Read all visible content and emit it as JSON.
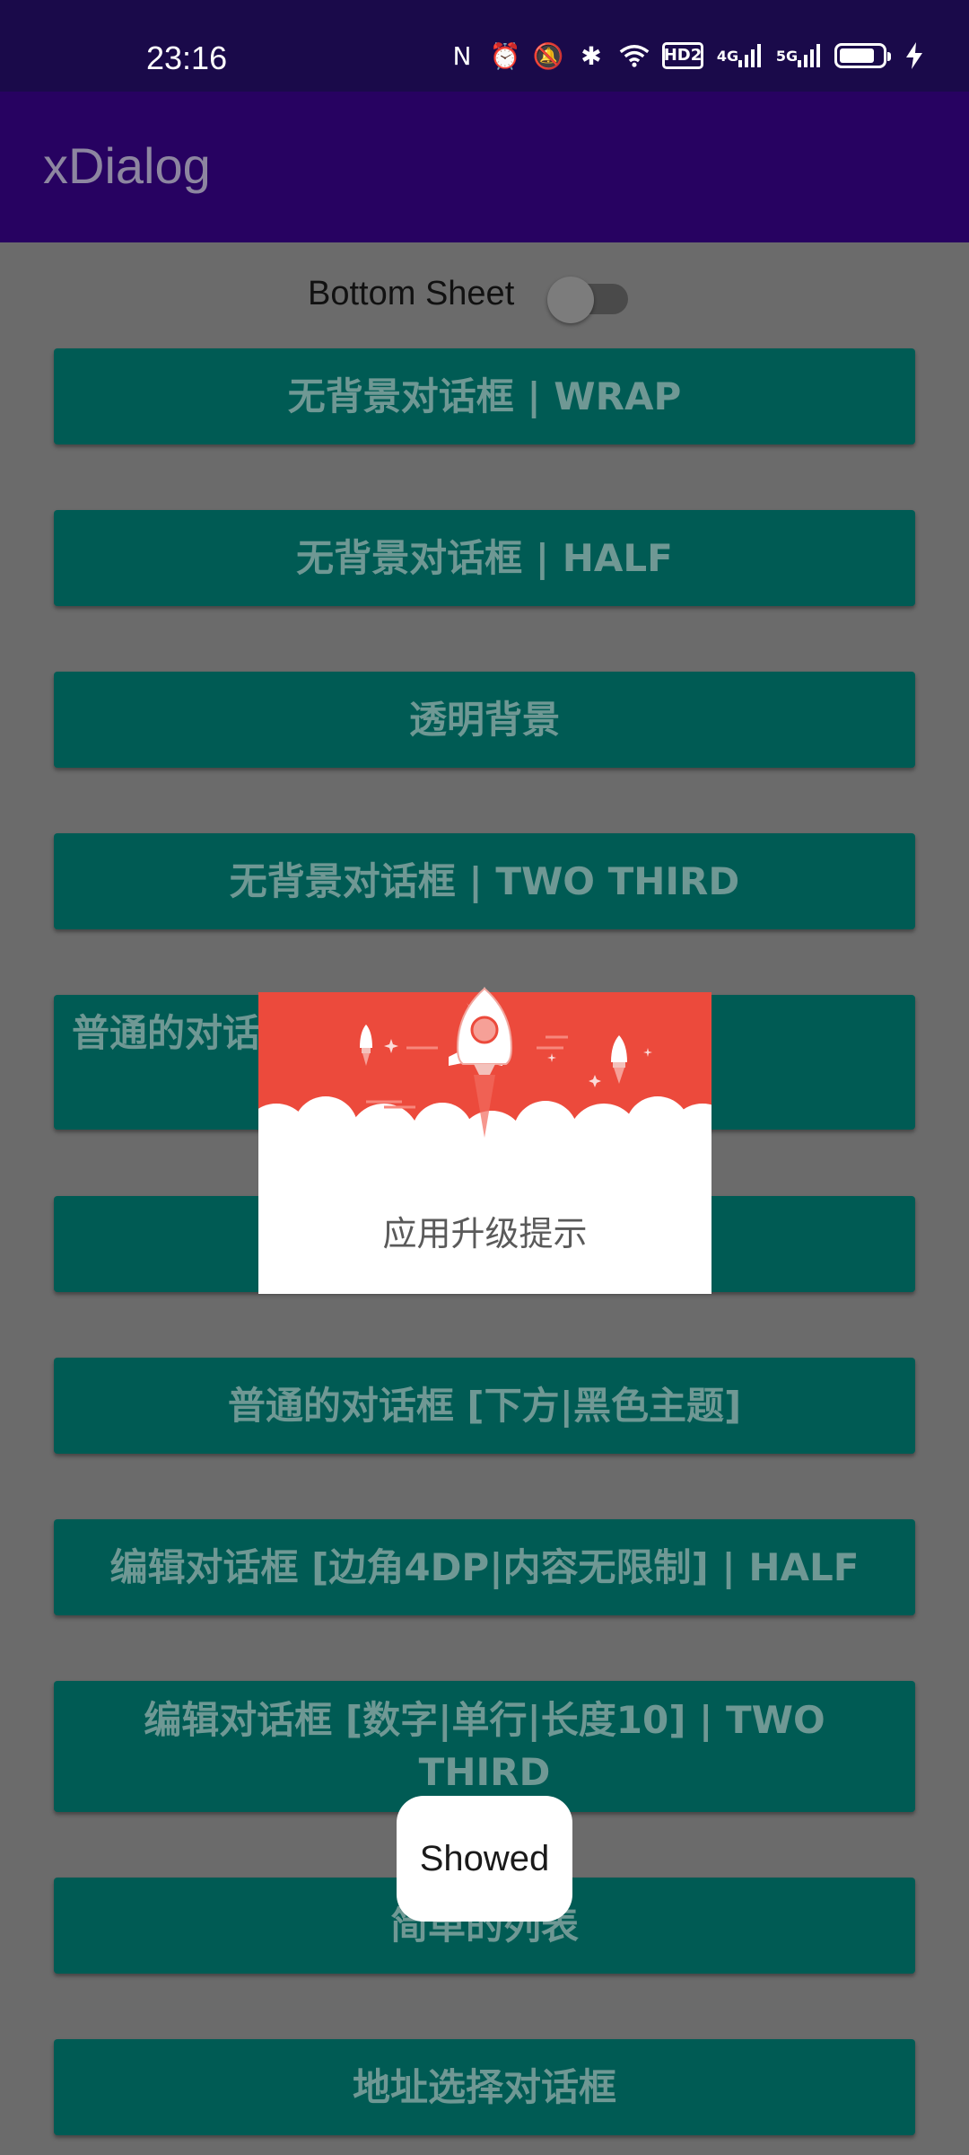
{
  "status_bar": {
    "time": "23:16",
    "icons": [
      "nfc-icon",
      "alarm-icon",
      "mute-icon",
      "bluetooth-icon",
      "wifi-icon",
      "hd-icon",
      "4g-signal-icon",
      "5g-signal-icon",
      "battery-icon",
      "charging-icon"
    ],
    "hd_label": "HD2",
    "net1": "4G",
    "net2": "5G"
  },
  "app_bar": {
    "title": "xDialog"
  },
  "bottom_sheet": {
    "label": "Bottom Sheet",
    "checked": false
  },
  "buttons": [
    "无背景对话框 | WRAP",
    "无背景对话框 | HALF",
    "透明背景",
    "无背景对话框 | TWO THIRD",
    "普通的对话框 [左侧标题|无标题|自定",
    "",
    "普通的对话框 [下方|黑色主题]",
    "编辑对话框 [边角4DP|内容无限制] | HALF",
    "编辑对话框 [数字|单行|长度10] | TWO THIRD",
    "简单的列表",
    "地址选择对话框"
  ],
  "dialog": {
    "title": "应用升级提示"
  },
  "toast": {
    "text": "Showed"
  },
  "colors": {
    "status_bar": "#1a0a4a",
    "app_bar": "#270261",
    "button": "#005b54",
    "dialog_header": "#ec4a3c"
  }
}
